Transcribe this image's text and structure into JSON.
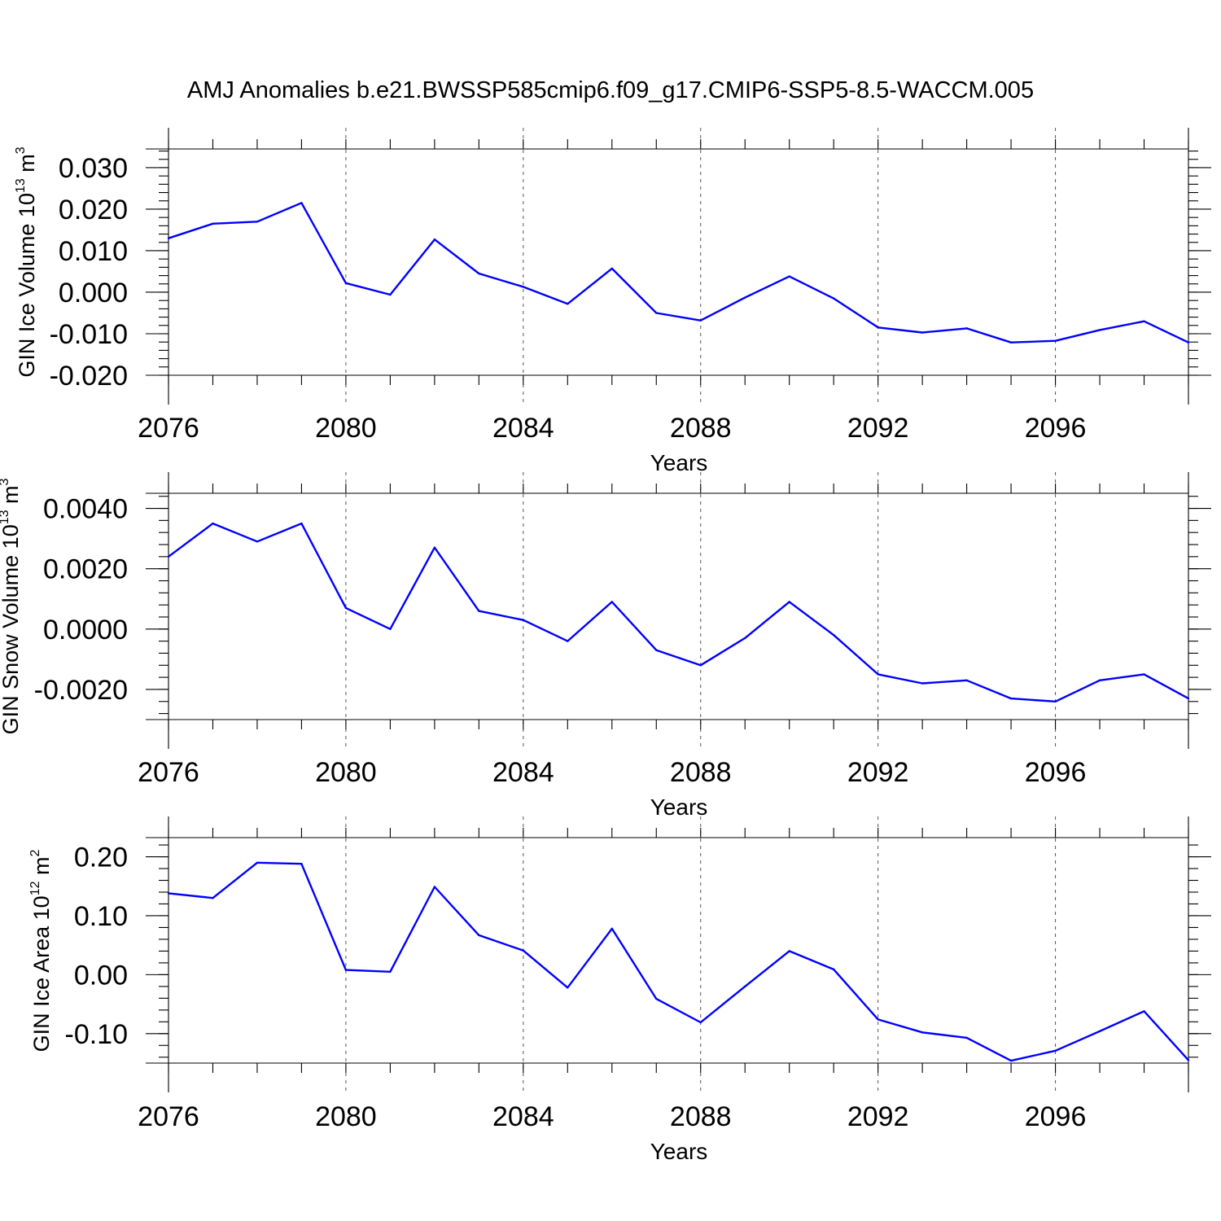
{
  "title": "AMJ Anomalies b.e21.BWSSP585cmip6.f09_g17.CMIP6-SSP5-8.5-WACCM.005",
  "colors": {
    "line": "#0000ff",
    "axis": "#000000",
    "grid": "#555555"
  },
  "chart_data": [
    {
      "type": "line",
      "ylabel": {
        "main": "GIN Ice Volume 10",
        "exp": "13",
        "unit": " m",
        "unit_exp": "3"
      },
      "xlabel": "Years",
      "xlim": [
        2076,
        2099
      ],
      "ylim": [
        -0.02,
        0.0345
      ],
      "yticks": [
        {
          "v": 0.03,
          "label": "0.030"
        },
        {
          "v": 0.02,
          "label": "0.020"
        },
        {
          "v": 0.01,
          "label": "0.010"
        },
        {
          "v": 0.0,
          "label": "0.000"
        },
        {
          "v": -0.01,
          "label": "-0.010"
        },
        {
          "v": -0.02,
          "label": "-0.020"
        }
      ],
      "yminor_step": 0.002,
      "xticks": [
        {
          "v": 2076,
          "label": "2076"
        },
        {
          "v": 2080,
          "label": "2080"
        },
        {
          "v": 2084,
          "label": "2084"
        },
        {
          "v": 2088,
          "label": "2088"
        },
        {
          "v": 2092,
          "label": "2092"
        },
        {
          "v": 2096,
          "label": "2096"
        }
      ],
      "grid_x": [
        2080,
        2084,
        2088,
        2092,
        2096
      ],
      "x": [
        2076,
        2077,
        2078,
        2079,
        2080,
        2081,
        2082,
        2083,
        2084,
        2085,
        2086,
        2087,
        2088,
        2089,
        2090,
        2091,
        2092,
        2093,
        2094,
        2095,
        2096,
        2097,
        2098,
        2099
      ],
      "values": [
        0.013,
        0.0165,
        0.017,
        0.0215,
        0.0022,
        -0.0006,
        0.0127,
        0.0045,
        0.0013,
        -0.0028,
        0.0057,
        -0.005,
        -0.0068,
        -0.0013,
        0.0038,
        -0.0015,
        -0.0085,
        -0.0097,
        -0.0087,
        -0.0121,
        -0.0117,
        -0.0091,
        -0.007,
        -0.0121
      ]
    },
    {
      "type": "line",
      "ylabel": {
        "main": "GIN Snow Volume 10",
        "exp": "13",
        "unit": " m",
        "unit_exp": "3"
      },
      "xlabel": "Years",
      "xlim": [
        2076,
        2099
      ],
      "ylim": [
        -0.003,
        0.0045
      ],
      "yticks": [
        {
          "v": 0.004,
          "label": "0.0040"
        },
        {
          "v": 0.002,
          "label": "0.0020"
        },
        {
          "v": 0.0,
          "label": "0.0000"
        },
        {
          "v": -0.002,
          "label": "-0.0020"
        }
      ],
      "yminor_step": 0.0004,
      "xticks": [
        {
          "v": 2076,
          "label": "2076"
        },
        {
          "v": 2080,
          "label": "2080"
        },
        {
          "v": 2084,
          "label": "2084"
        },
        {
          "v": 2088,
          "label": "2088"
        },
        {
          "v": 2092,
          "label": "2092"
        },
        {
          "v": 2096,
          "label": "2096"
        }
      ],
      "grid_x": [
        2080,
        2084,
        2088,
        2092,
        2096
      ],
      "x": [
        2076,
        2077,
        2078,
        2079,
        2080,
        2081,
        2082,
        2083,
        2084,
        2085,
        2086,
        2087,
        2088,
        2089,
        2090,
        2091,
        2092,
        2093,
        2094,
        2095,
        2096,
        2097,
        2098,
        2099
      ],
      "values": [
        0.0024,
        0.0035,
        0.0029,
        0.0035,
        0.0007,
        0.0,
        0.0027,
        0.0006,
        0.0003,
        -0.0004,
        0.0009,
        -0.0007,
        -0.0012,
        -0.0003,
        0.0009,
        -0.0002,
        -0.0015,
        -0.0018,
        -0.0017,
        -0.0023,
        -0.0024,
        -0.0017,
        -0.0015,
        -0.0023
      ]
    },
    {
      "type": "line",
      "ylabel": {
        "main": "GIN Ice Area 10",
        "exp": "12",
        "unit": " m",
        "unit_exp": "2"
      },
      "xlabel": "Years",
      "xlim": [
        2076,
        2099
      ],
      "ylim": [
        -0.15,
        0.2325
      ],
      "yticks": [
        {
          "v": 0.2,
          "label": "0.20"
        },
        {
          "v": 0.1,
          "label": "0.10"
        },
        {
          "v": 0.0,
          "label": "0.00"
        },
        {
          "v": -0.1,
          "label": "-0.10"
        }
      ],
      "yminor_step": 0.02,
      "xticks": [
        {
          "v": 2076,
          "label": "2076"
        },
        {
          "v": 2080,
          "label": "2080"
        },
        {
          "v": 2084,
          "label": "2084"
        },
        {
          "v": 2088,
          "label": "2088"
        },
        {
          "v": 2092,
          "label": "2092"
        },
        {
          "v": 2096,
          "label": "2096"
        }
      ],
      "grid_x": [
        2080,
        2084,
        2088,
        2092,
        2096
      ],
      "x": [
        2076,
        2077,
        2078,
        2079,
        2080,
        2081,
        2082,
        2083,
        2084,
        2085,
        2086,
        2087,
        2088,
        2089,
        2090,
        2091,
        2092,
        2093,
        2094,
        2095,
        2096,
        2097,
        2098,
        2099
      ],
      "values": [
        0.138,
        0.13,
        0.19,
        0.188,
        0.008,
        0.005,
        0.149,
        0.067,
        0.041,
        -0.022,
        0.078,
        -0.041,
        -0.081,
        -0.02,
        0.04,
        0.009,
        -0.076,
        -0.098,
        -0.107,
        -0.146,
        -0.129,
        -0.096,
        -0.062,
        -0.145
      ]
    }
  ]
}
